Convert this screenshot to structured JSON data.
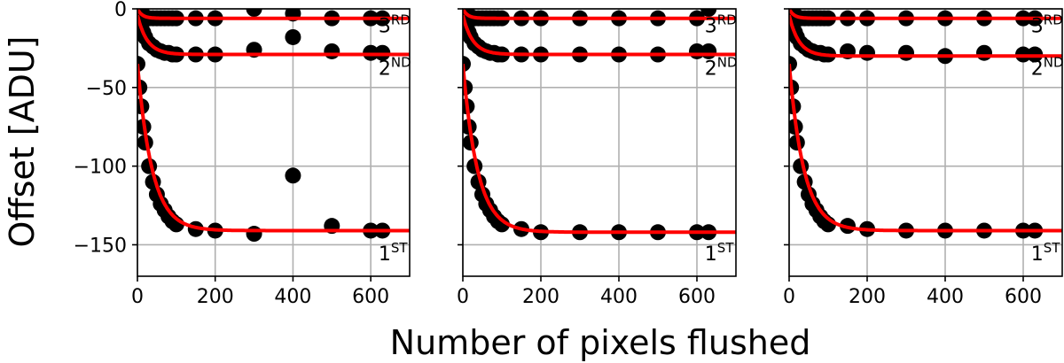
{
  "chart_data": {
    "type": "scatter",
    "xlabel": "Number of pixels flushed",
    "ylabel": "Offset [ADU]",
    "xlim": [
      0,
      700
    ],
    "ylim": [
      -170,
      0
    ],
    "xticks": [
      0,
      200,
      400,
      600
    ],
    "yticks": [
      0,
      -50,
      -100,
      -150
    ],
    "grid": true,
    "colors": {
      "points": "#000000",
      "fit": "#ff0000"
    },
    "curve_labels": [
      {
        "base": "3",
        "sup": "RD",
        "x": 620,
        "y": -15
      },
      {
        "base": "2",
        "sup": "ND",
        "x": 620,
        "y": -42
      },
      {
        "base": "1",
        "sup": "ST",
        "x": 620,
        "y": -160
      }
    ],
    "panels": [
      {
        "series": [
          {
            "name": "3RD",
            "asymptote": -6,
            "tau": 12,
            "x": [
              0,
              5,
              10,
              15,
              20,
              30,
              40,
              50,
              60,
              70,
              80,
              90,
              100,
              150,
              200,
              300,
              400,
              500,
              600,
              630
            ],
            "y": [
              0,
              -2,
              -3,
              -4,
              -5,
              -6,
              -6,
              -6,
              -6,
              -6,
              -6,
              -6,
              -6,
              -6,
              -6,
              0,
              -3,
              -6,
              -6,
              -6
            ]
          },
          {
            "name": "2ND",
            "asymptote": -29,
            "tau": 25,
            "x": [
              0,
              5,
              10,
              15,
              20,
              30,
              40,
              50,
              60,
              70,
              80,
              90,
              100,
              150,
              200,
              300,
              400,
              500,
              600,
              630
            ],
            "y": [
              -4,
              -8,
              -12,
              -15,
              -18,
              -22,
              -24,
              -26,
              -27,
              -28,
              -28,
              -29,
              -29,
              -29,
              -29,
              -26,
              -18,
              -27,
              -28,
              -28
            ]
          },
          {
            "name": "1ST",
            "asymptote": -141,
            "tau": 38,
            "x": [
              0,
              5,
              10,
              15,
              20,
              30,
              40,
              50,
              60,
              70,
              80,
              90,
              100,
              150,
              200,
              300,
              400,
              500,
              600,
              630
            ],
            "y": [
              -35,
              -50,
              -62,
              -75,
              -85,
              -100,
              -110,
              -118,
              -124,
              -128,
              -132,
              -135,
              -137,
              -140,
              -141,
              -143,
              -106,
              -138,
              -141,
              -141
            ]
          }
        ]
      },
      {
        "series": [
          {
            "name": "3RD",
            "asymptote": -6,
            "tau": 12,
            "x": [
              0,
              5,
              10,
              15,
              20,
              30,
              40,
              50,
              60,
              70,
              80,
              90,
              100,
              150,
              200,
              300,
              400,
              500,
              600,
              630
            ],
            "y": [
              0,
              -2,
              -3,
              -4,
              -5,
              -6,
              -6,
              -6,
              -6,
              -6,
              -6,
              -6,
              -6,
              -6,
              -6,
              -6,
              -6,
              -6,
              -6,
              0
            ]
          },
          {
            "name": "2ND",
            "asymptote": -29,
            "tau": 25,
            "x": [
              0,
              5,
              10,
              15,
              20,
              30,
              40,
              50,
              60,
              70,
              80,
              90,
              100,
              150,
              200,
              300,
              400,
              500,
              600,
              630
            ],
            "y": [
              -4,
              -8,
              -12,
              -15,
              -18,
              -22,
              -24,
              -26,
              -27,
              -28,
              -28,
              -29,
              -29,
              -29,
              -29,
              -29,
              -29,
              -29,
              -27,
              -27
            ]
          },
          {
            "name": "1ST",
            "asymptote": -142,
            "tau": 38,
            "x": [
              0,
              5,
              10,
              15,
              20,
              30,
              40,
              50,
              60,
              70,
              80,
              90,
              100,
              150,
              200,
              300,
              400,
              500,
              600,
              630
            ],
            "y": [
              -35,
              -50,
              -62,
              -75,
              -85,
              -100,
              -110,
              -118,
              -124,
              -128,
              -132,
              -135,
              -137,
              -140,
              -142,
              -142,
              -142,
              -142,
              -142,
              -142
            ]
          }
        ]
      },
      {
        "series": [
          {
            "name": "3RD",
            "asymptote": -6,
            "tau": 12,
            "x": [
              0,
              5,
              10,
              15,
              20,
              30,
              40,
              50,
              60,
              70,
              80,
              90,
              100,
              150,
              200,
              300,
              400,
              500,
              600,
              630
            ],
            "y": [
              0,
              -2,
              -3,
              -4,
              -5,
              -6,
              -6,
              -6,
              -6,
              -6,
              -6,
              -6,
              -6,
              -6,
              -6,
              -6,
              -6,
              -6,
              -6,
              -6
            ]
          },
          {
            "name": "2ND",
            "asymptote": -30,
            "tau": 25,
            "x": [
              0,
              5,
              10,
              15,
              20,
              30,
              40,
              50,
              60,
              70,
              80,
              90,
              100,
              150,
              200,
              300,
              400,
              500,
              600,
              630
            ],
            "y": [
              -4,
              -8,
              -12,
              -15,
              -18,
              -22,
              -24,
              -26,
              -27,
              -28,
              -28,
              -29,
              -29,
              -27,
              -28,
              -28,
              -30,
              -28,
              -29,
              -29
            ]
          },
          {
            "name": "1ST",
            "asymptote": -141,
            "tau": 38,
            "x": [
              0,
              5,
              10,
              15,
              20,
              30,
              40,
              50,
              60,
              70,
              80,
              90,
              100,
              150,
              200,
              300,
              400,
              500,
              600,
              630
            ],
            "y": [
              -35,
              -50,
              -62,
              -75,
              -85,
              -100,
              -110,
              -118,
              -124,
              -128,
              -132,
              -135,
              -137,
              -138,
              -140,
              -141,
              -141,
              -141,
              -141,
              -141
            ]
          }
        ]
      }
    ]
  }
}
